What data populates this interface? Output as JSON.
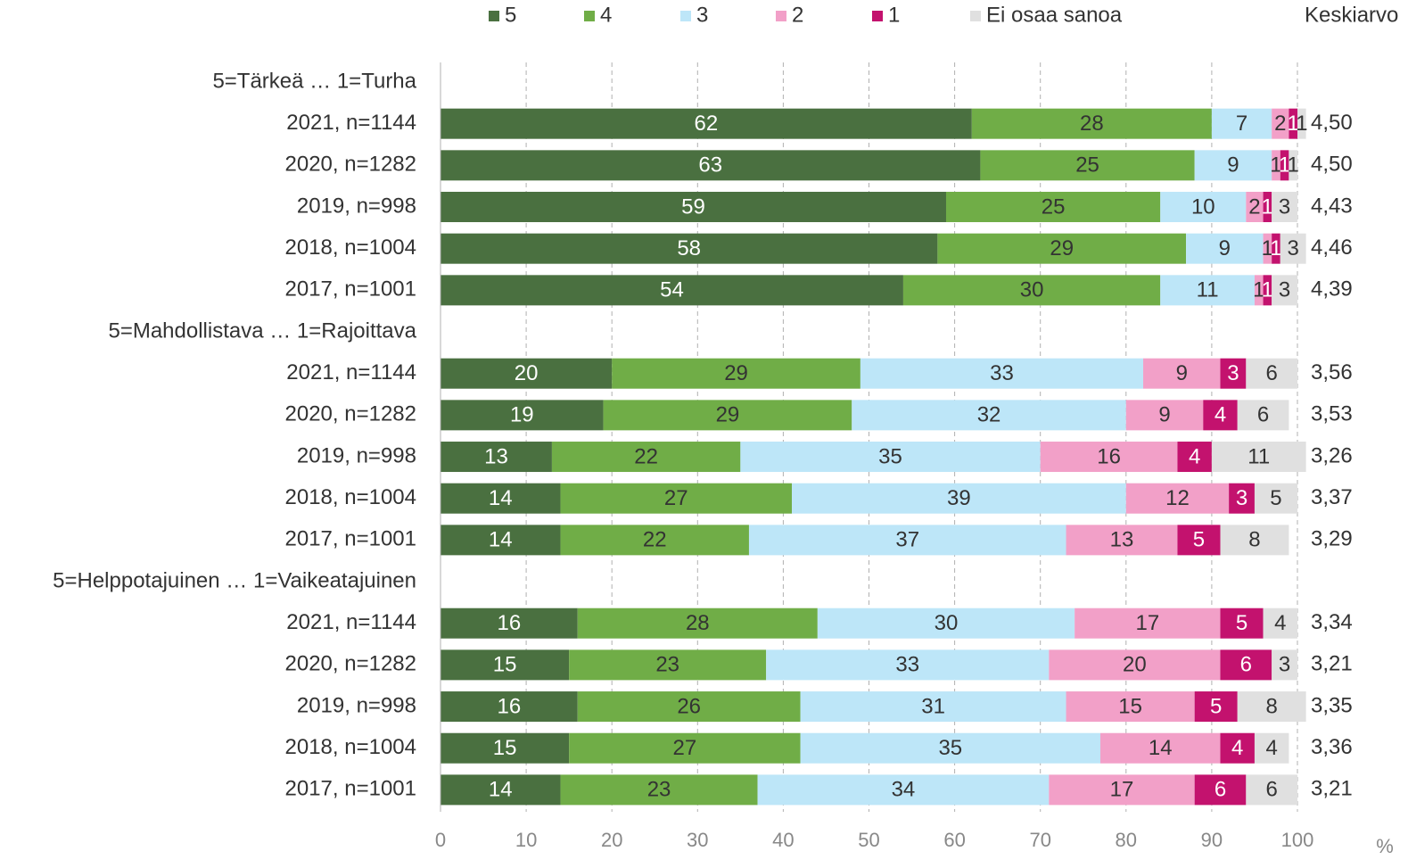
{
  "chart_data": {
    "type": "stacked-bar-horizontal",
    "categories": [
      "5=Tärkeä … 1=Turha",
      "2021, n=1144",
      "2020, n=1282",
      "2019, n=998",
      "2018, n=1004",
      "2017, n=1001",
      "5=Mahdollistava … 1=Rajoittava",
      "2021, n=1144",
      "2020, n=1282",
      "2019, n=998",
      "2018, n=1004",
      "2017, n=1001",
      "5=Helppotajuinen … 1=Vaikeatajuinen",
      "2021, n=1144",
      "2020, n=1282",
      "2019, n=998",
      "2018, n=1004",
      "2017, n=1001"
    ],
    "series": [
      {
        "name": "5",
        "color": "#4a7040",
        "values": [
          null,
          62,
          63,
          59,
          58,
          54,
          null,
          20,
          19,
          13,
          14,
          14,
          null,
          16,
          15,
          16,
          15,
          14
        ]
      },
      {
        "name": "4",
        "color": "#70ad47",
        "values": [
          null,
          28,
          25,
          25,
          29,
          30,
          null,
          29,
          29,
          22,
          27,
          22,
          null,
          28,
          23,
          26,
          27,
          23
        ]
      },
      {
        "name": "3",
        "color": "#bde6f8",
        "values": [
          null,
          7,
          9,
          10,
          9,
          11,
          null,
          33,
          32,
          35,
          39,
          37,
          null,
          30,
          33,
          31,
          35,
          34
        ]
      },
      {
        "name": "2",
        "color": "#f2a0c8",
        "values": [
          null,
          2,
          1,
          2,
          1,
          1,
          null,
          9,
          9,
          16,
          12,
          13,
          null,
          17,
          20,
          15,
          14,
          17
        ]
      },
      {
        "name": "1",
        "color": "#c3126e",
        "values": [
          null,
          1,
          1,
          1,
          1,
          1,
          null,
          3,
          4,
          4,
          3,
          5,
          null,
          5,
          6,
          5,
          4,
          6
        ]
      },
      {
        "name": "Ei osaa sanoa",
        "color": "#e0e0e0",
        "values": [
          null,
          1,
          1,
          3,
          3,
          3,
          null,
          6,
          6,
          11,
          5,
          8,
          null,
          4,
          3,
          8,
          4,
          6
        ]
      }
    ],
    "means_title": "Keskiarvo",
    "means": [
      null,
      "4,50",
      "4,50",
      "4,43",
      "4,46",
      "4,39",
      null,
      "3,56",
      "3,53",
      "3,26",
      "3,37",
      "3,29",
      null,
      "3,34",
      "3,21",
      "3,35",
      "3,36",
      "3,21"
    ],
    "xlim": [
      0,
      100
    ],
    "xticks": [
      0,
      10,
      20,
      30,
      40,
      50,
      60,
      70,
      80,
      90,
      100
    ],
    "x_unit": "%",
    "grid": true
  }
}
